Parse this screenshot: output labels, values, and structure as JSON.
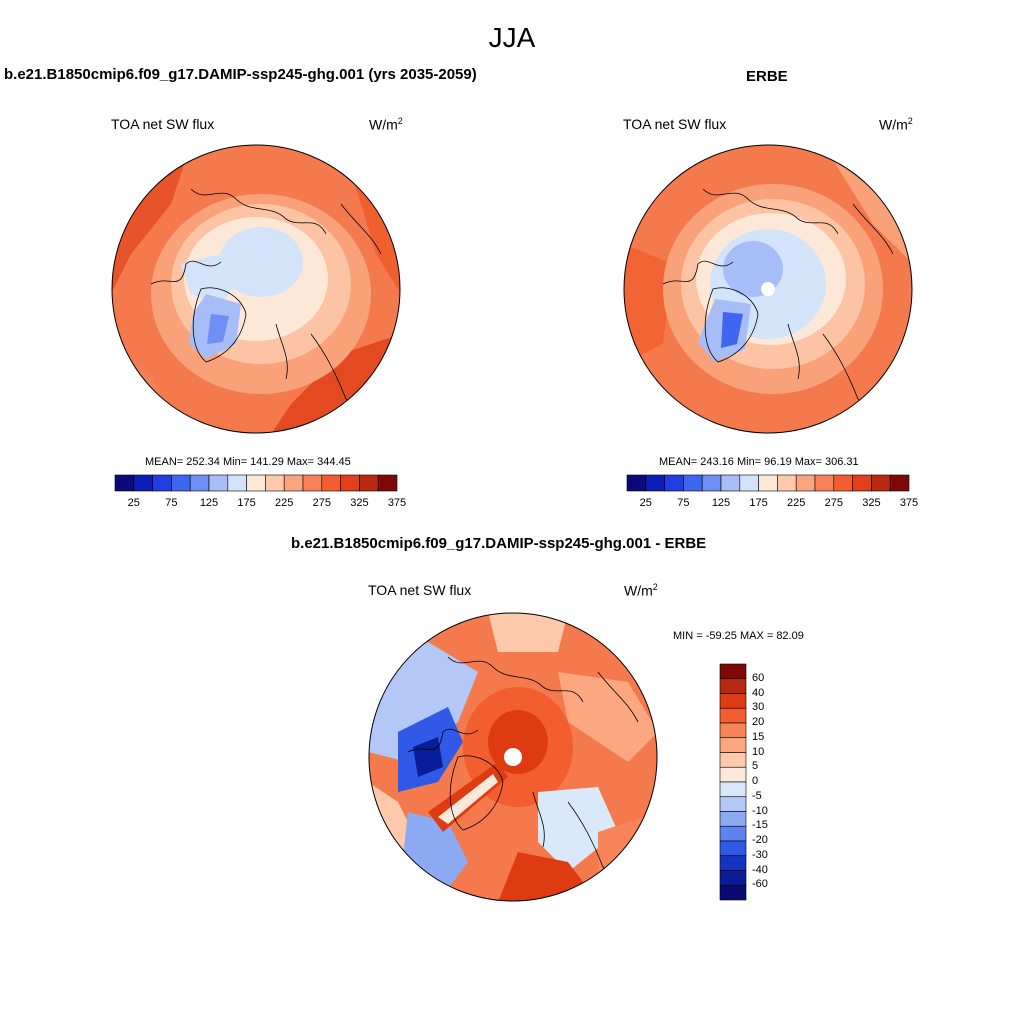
{
  "page_title": "JJA",
  "panel_model": {
    "case_title": "b.e21.B1850cmip6.f09_g17.DAMIP-ssp245-ghg.001 (yrs 2035-2059)",
    "variable": "TOA net SW flux",
    "units": "W/m",
    "units_exp": "2",
    "stats": "MEAN= 252.34  Min= 141.29  Max= 344.45"
  },
  "panel_obs": {
    "case_title": "ERBE",
    "variable": "TOA net SW flux",
    "units": "W/m",
    "units_exp": "2",
    "stats": "MEAN= 243.16  Min=  96.19  Max= 306.31"
  },
  "panel_diff": {
    "case_title": "b.e21.B1850cmip6.f09_g17.DAMIP-ssp245-ghg.001 - ERBE",
    "variable": "TOA net SW flux",
    "units": "W/m",
    "units_exp": "2",
    "stats": "MIN = -59.25 MAX =  82.09"
  },
  "colorbar_abs": {
    "colors": [
      "#0a0a7a",
      "#0b1fb4",
      "#1f3fe0",
      "#3f66f0",
      "#6f8ff5",
      "#a6bdf7",
      "#d3e3fa",
      "#fde8d8",
      "#fcc9aa",
      "#fba57e",
      "#f88258",
      "#f25e30",
      "#e0401a",
      "#b72a10",
      "#7d0a06"
    ],
    "labels": [
      "25",
      "75",
      "125",
      "175",
      "225",
      "275",
      "325",
      "375"
    ]
  },
  "colorbar_diff": {
    "colors": [
      "#7d0a06",
      "#b72a10",
      "#de3b12",
      "#f25e30",
      "#f8845a",
      "#fba77f",
      "#fcc9aa",
      "#fde9dc",
      "#d9e8fa",
      "#b3c8f7",
      "#8caaf2",
      "#5f83ee",
      "#2f59e6",
      "#1434c0",
      "#0a1c98",
      "#0a0a70"
    ],
    "labels": [
      "60",
      "40",
      "30",
      "20",
      "15",
      "10",
      "5",
      "0",
      "-5",
      "-10",
      "-15",
      "-20",
      "-30",
      "-40",
      "-60"
    ]
  },
  "icons": [
    "polar-stereographic-map"
  ]
}
